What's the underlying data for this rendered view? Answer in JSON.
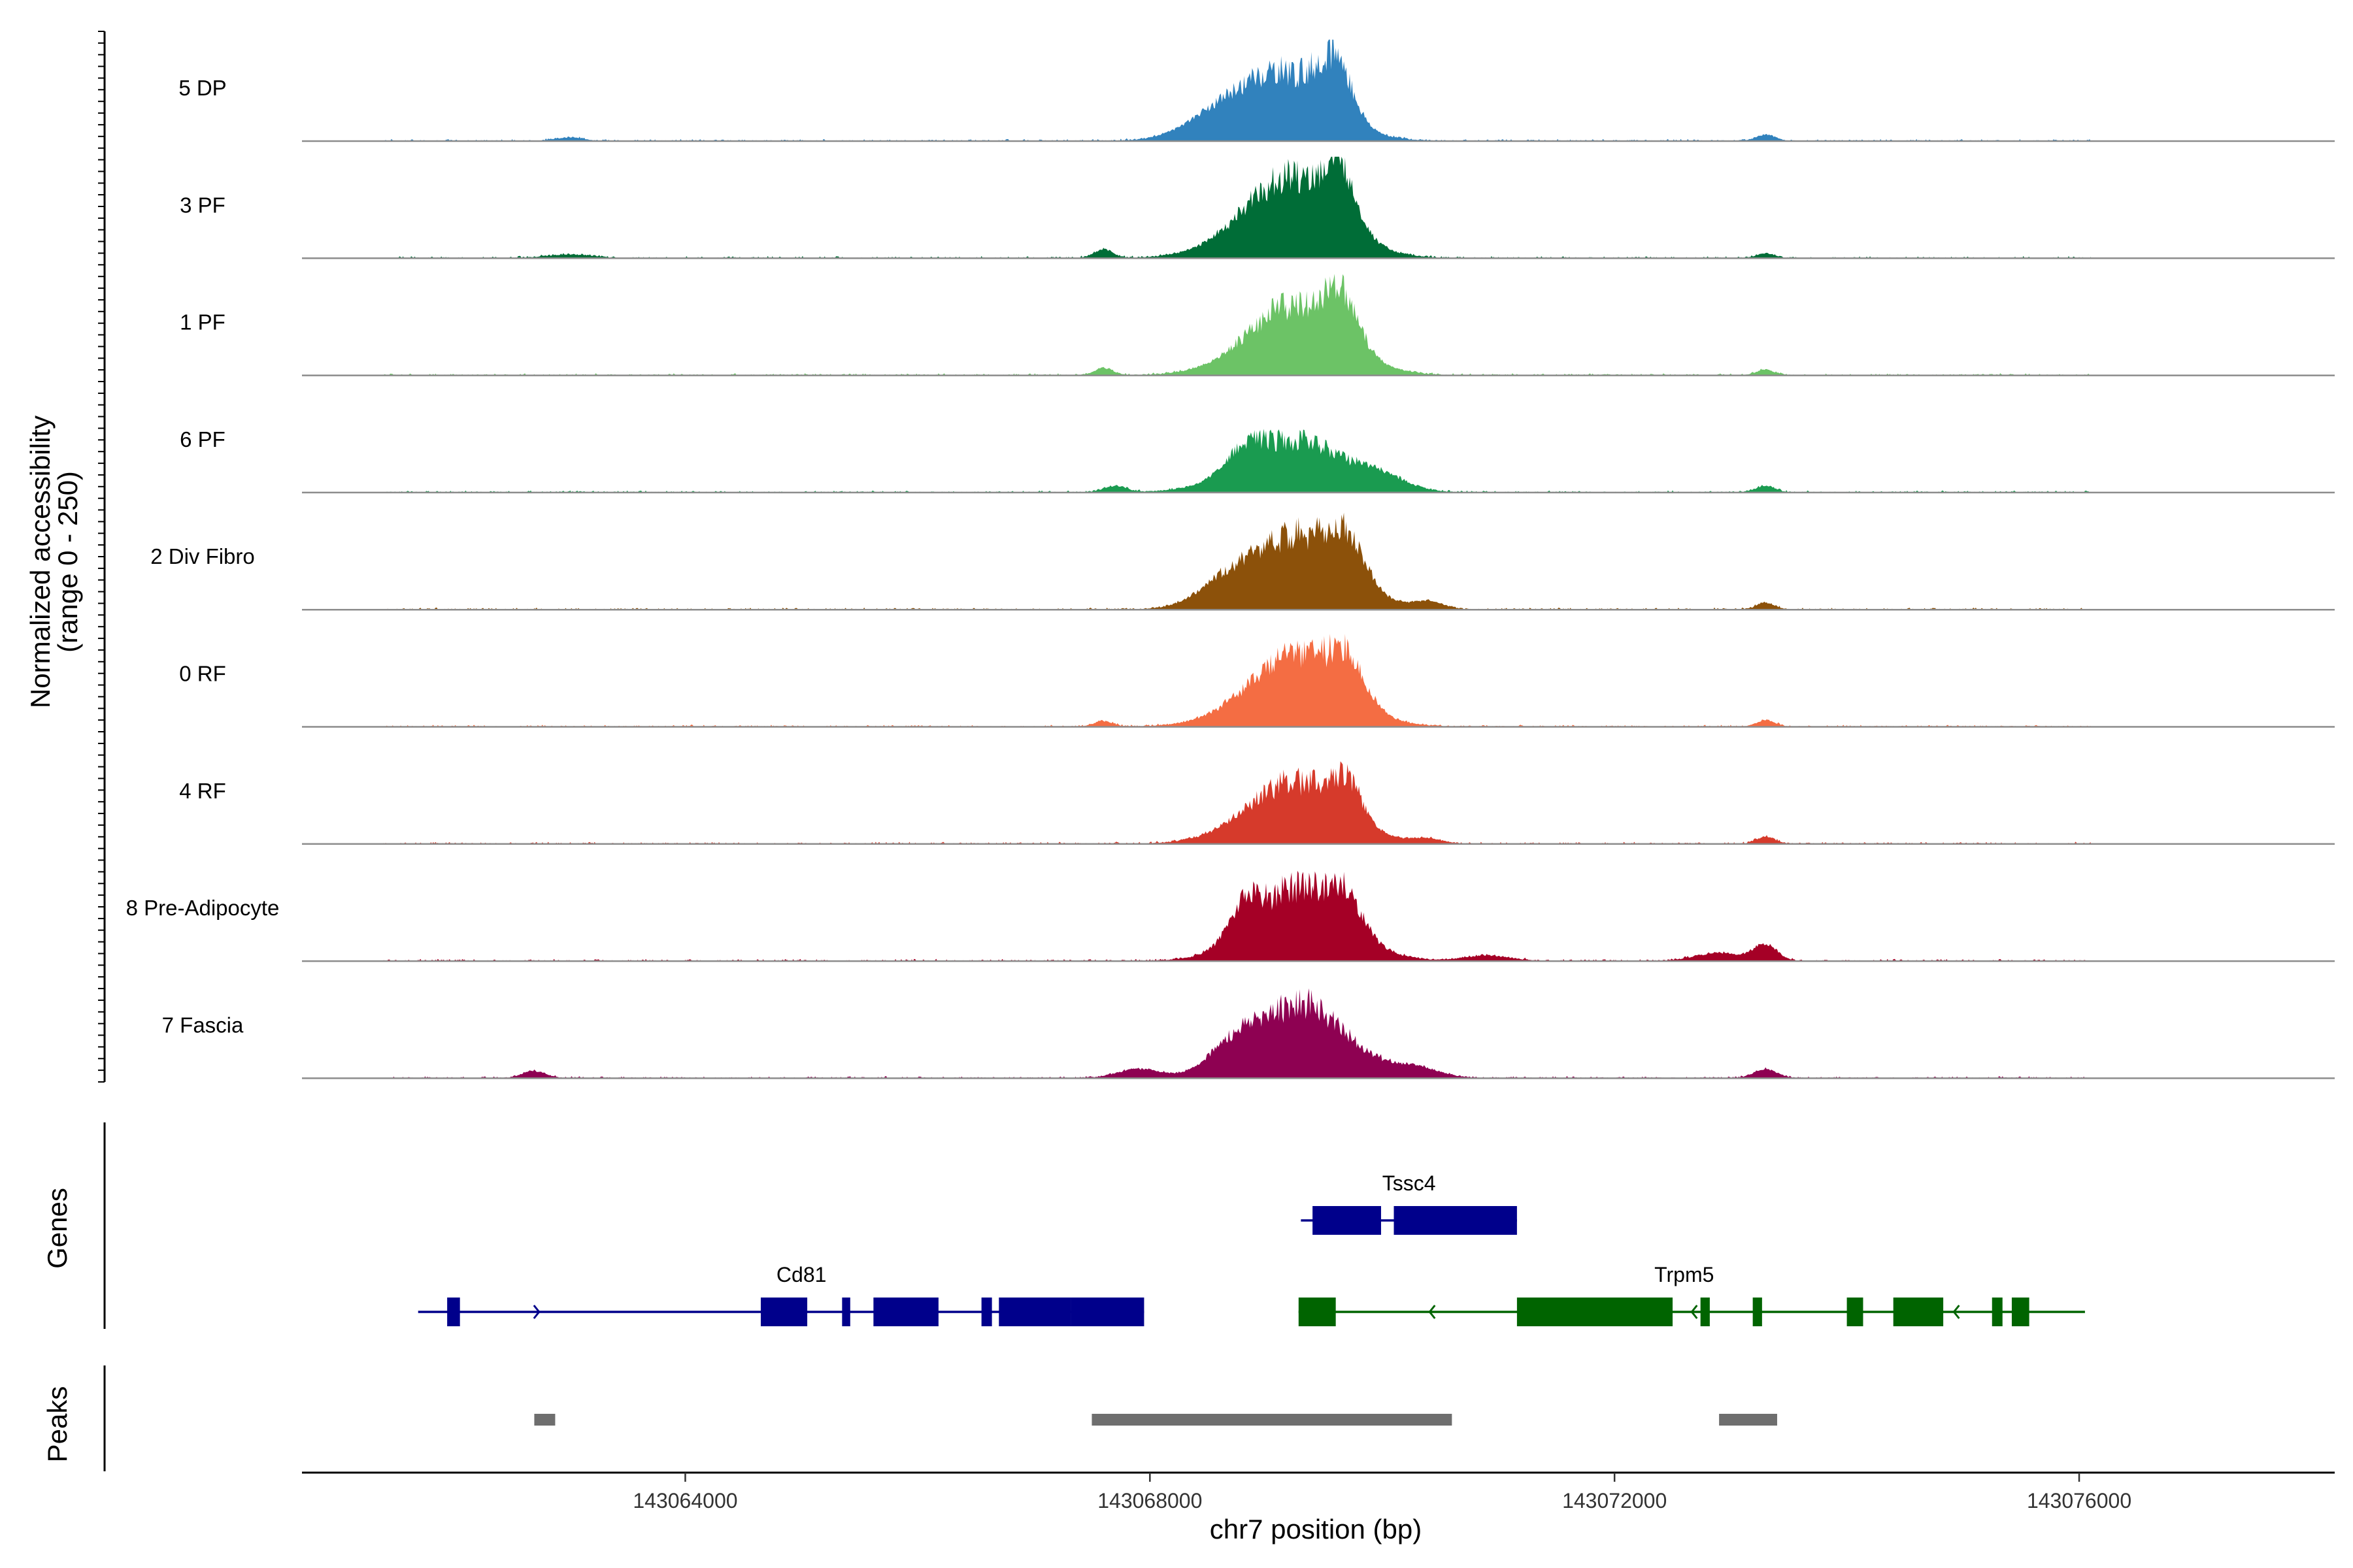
{
  "chart_data": {
    "type": "area",
    "title": "",
    "xlabel": "chr7 position (bp)",
    "ylabel_line1": "Normalized accessibility",
    "ylabel_line2": "(range 0 - 250)",
    "ylim": [
      0,
      250
    ],
    "xlim": [
      143060700,
      143078200
    ],
    "data_start": 143061400,
    "data_end": 143076100,
    "x_ticks": [
      143064000,
      143068000,
      143072000,
      143076000
    ],
    "x_tick_labels": [
      "143064000",
      "143068000",
      "143072000",
      "143076000"
    ],
    "series": [
      {
        "name": "5 DP",
        "color": "#3182BD",
        "peaks": [
          [
            143069100,
            0.67,
            420
          ],
          [
            143069600,
            0.55,
            140
          ],
          [
            143068500,
            0.12,
            250
          ],
          [
            143063000,
            0.04,
            120
          ],
          [
            143073300,
            0.07,
            80
          ]
        ]
      },
      {
        "name": "3 PF",
        "color": "#006D37",
        "peaks": [
          [
            143069200,
            0.78,
            420
          ],
          [
            143069650,
            0.5,
            130
          ],
          [
            143067600,
            0.1,
            80
          ],
          [
            143063000,
            0.04,
            200
          ],
          [
            143073300,
            0.05,
            80
          ]
        ]
      },
      {
        "name": "1 PF",
        "color": "#6CC366",
        "peaks": [
          [
            143069250,
            0.68,
            420
          ],
          [
            143069650,
            0.45,
            140
          ],
          [
            143067600,
            0.08,
            80
          ],
          [
            143073300,
            0.06,
            80
          ]
        ]
      },
      {
        "name": "6 PF",
        "color": "#1A9B50",
        "peaks": [
          [
            143069250,
            0.5,
            450
          ],
          [
            143068800,
            0.2,
            160
          ],
          [
            143070000,
            0.12,
            200
          ],
          [
            143067700,
            0.07,
            100
          ],
          [
            143073300,
            0.07,
            80
          ]
        ]
      },
      {
        "name": "2 Div Fibro",
        "color": "#8C510A",
        "peaks": [
          [
            143069250,
            0.72,
            430
          ],
          [
            143069700,
            0.4,
            150
          ],
          [
            143068600,
            0.15,
            200
          ],
          [
            143070400,
            0.08,
            120
          ],
          [
            143073300,
            0.07,
            80
          ]
        ]
      },
      {
        "name": "0 RF",
        "color": "#F46D43",
        "peaks": [
          [
            143069250,
            0.68,
            420
          ],
          [
            143069700,
            0.4,
            150
          ],
          [
            143067600,
            0.06,
            80
          ],
          [
            143073300,
            0.07,
            80
          ]
        ]
      },
      {
        "name": "4 RF",
        "color": "#D63A2B",
        "peaks": [
          [
            143069250,
            0.6,
            420
          ],
          [
            143069700,
            0.35,
            130
          ],
          [
            143070400,
            0.05,
            120
          ],
          [
            143073300,
            0.08,
            80
          ]
        ]
      },
      {
        "name": "8 Pre-Adipocyte",
        "color": "#A50026",
        "peaks": [
          [
            143069300,
            0.72,
            400
          ],
          [
            143068800,
            0.3,
            130
          ],
          [
            143069700,
            0.3,
            130
          ],
          [
            143072900,
            0.09,
            200
          ],
          [
            143073300,
            0.18,
            100
          ],
          [
            143070900,
            0.06,
            200
          ]
        ]
      },
      {
        "name": "7 Fascia",
        "color": "#8E0152",
        "peaks": [
          [
            143069300,
            0.72,
            420
          ],
          [
            143068700,
            0.2,
            200
          ],
          [
            143067900,
            0.1,
            180
          ],
          [
            143070300,
            0.1,
            200
          ],
          [
            143062700,
            0.08,
            100
          ],
          [
            143073300,
            0.1,
            100
          ]
        ]
      }
    ],
    "genes": [
      {
        "name": "Cd81",
        "color": "#00008B",
        "strand": "+",
        "row": 2,
        "start": 143061700,
        "end": 143067950,
        "exons": [
          [
            143061950,
            143062060
          ],
          [
            143064650,
            143065050
          ],
          [
            143065350,
            143065420
          ],
          [
            143065620,
            143066180
          ],
          [
            143066550,
            143066640
          ],
          [
            143066700,
            143067320
          ],
          [
            143067320,
            143067950
          ]
        ]
      },
      {
        "name": "Tssc4",
        "color": "#00008B",
        "strand": "+",
        "row": 1,
        "start": 143069300,
        "end": 143071160,
        "exons": [
          [
            143069400,
            143069990
          ],
          [
            143070100,
            143071160
          ]
        ]
      },
      {
        "name": "Trpm5",
        "color": "#006400",
        "strand": "-",
        "row": 2,
        "start": 143069280,
        "end": 143076050,
        "exons": [
          [
            143069280,
            143069600
          ],
          [
            143071160,
            143072500
          ],
          [
            143072740,
            143072820
          ],
          [
            143073190,
            143073270
          ],
          [
            143074000,
            143074140
          ],
          [
            143074400,
            143074830
          ],
          [
            143075250,
            143075340
          ],
          [
            143075420,
            143075570
          ]
        ]
      }
    ],
    "peaks_track": [
      [
        143062700,
        143062880
      ],
      [
        143067500,
        143070600
      ],
      [
        143072900,
        143073400
      ]
    ],
    "track_labels": {
      "genes": "Genes",
      "peaks": "Peaks"
    }
  }
}
